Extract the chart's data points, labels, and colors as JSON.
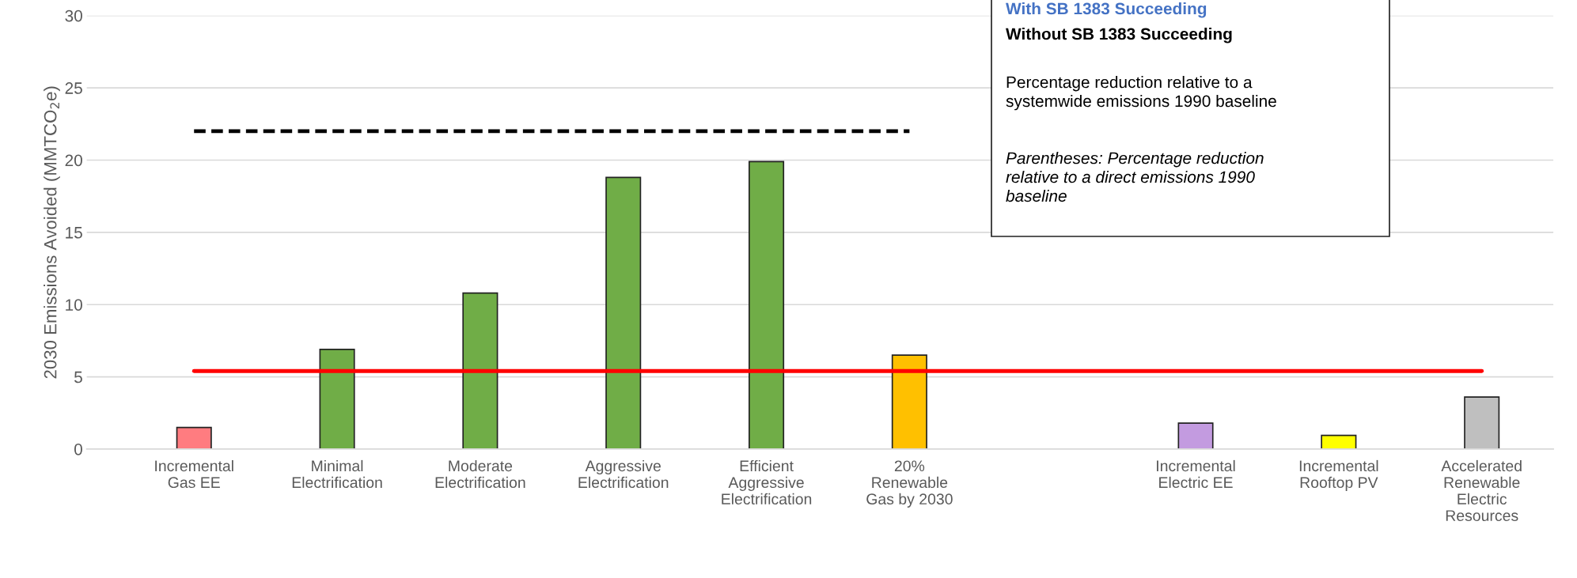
{
  "chart_data": {
    "type": "bar",
    "ylabel": "2030 Emissions Avoided (MMTCO$_{2}$e)",
    "categories": [
      "Incremental\nGas EE",
      "Minimal\nElectrification",
      "Moderate\nElectrification",
      "Aggressive\nElectrification",
      "Efficient\nAggressive\nElectrification",
      "20%\nRenewable\nGas by 2030",
      null,
      "Incremental\nElectric EE",
      "Incremental\nRooftop PV",
      "Accelerated\nRenewable\nElectric\nResources"
    ],
    "series": [
      {
        "values": [
          1.5,
          6.9,
          10.8,
          18.8,
          19.9,
          6.5,
          null,
          1.8,
          0.95,
          3.6
        ],
        "colors": [
          "#ff7c80",
          "#70ad47",
          "#70ad47",
          "#70ad47",
          "#70ad47",
          "#ffc000",
          "#ffffff",
          "#c39be0",
          "#ffff00",
          "#bfbfbf"
        ]
      },
      {
        "type": "line",
        "color": "#000000",
        "line_style": "dashed",
        "values": [
          22,
          22,
          22,
          22,
          22,
          22,
          null,
          null,
          null,
          null
        ]
      },
      {
        "type": "line",
        "color": "#ff0000",
        "line_style": "solid",
        "values": [
          5.4,
          5.4,
          5.4,
          5.4,
          5.4,
          5.4,
          5.4,
          5.4,
          5.4,
          5.4
        ]
      }
    ],
    "ylim": [
      0,
      30
    ],
    "yticks": [
      0,
      5,
      10,
      15,
      20,
      25,
      30
    ],
    "grid": "y",
    "annotations": [
      "With SB 1383 Succeeding",
      "Without SB 1383 Succeeding",
      "Percentage reduction relative to a\nsystemwide emissions 1990 baseline",
      "Parentheses: Percentage reduction\nrelative to a direct emissions 1990\nbaseline"
    ]
  }
}
